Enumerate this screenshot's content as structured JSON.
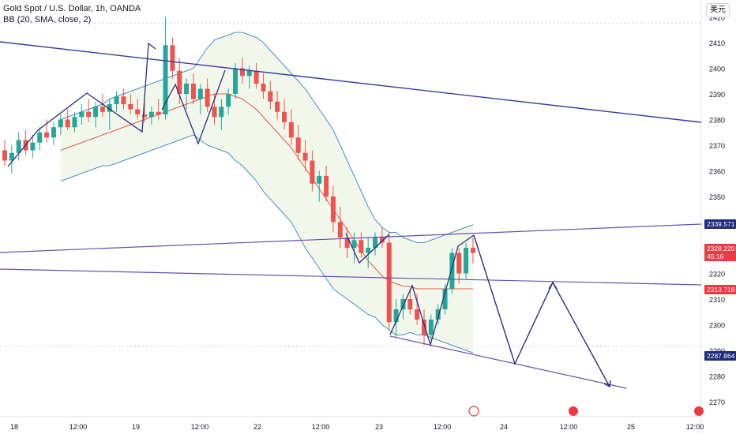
{
  "legend": {
    "symbol_line": "Gold Spot / U.S. Dollar, 1h, OANDA",
    "indicator_line": "BB (20, SMA, close, 2)"
  },
  "currency_button": "美元",
  "colors": {
    "up": "#26a69a",
    "down": "#ef5350",
    "bb_band": "#4a90c2",
    "bb_basis": "#e5574d",
    "bb_fill": "#eef6e6",
    "trendline": "#3a3aa0",
    "pattern": "#2e2e7a",
    "projection": "#2e2e7a",
    "label_red": "#f23645",
    "label_navy": "#1e2a78"
  },
  "chart_data": {
    "type": "candlestick",
    "title": "Gold Spot / U.S. Dollar, 1h, OANDA",
    "indicator": "BB (20, SMA, close, 2)",
    "ylim": [
      2268,
      2425
    ],
    "y_ticks": [
      2270,
      2280,
      2290,
      2300,
      2310,
      2320,
      2330,
      2340,
      2350,
      2360,
      2370,
      2380,
      2390,
      2400,
      2410,
      2420
    ],
    "x_ticks": [
      "18",
      "12:00",
      "19",
      "12:00",
      "22",
      "12:00",
      "23",
      "12:00",
      "24",
      "12:00",
      "25",
      "12:00"
    ],
    "price_labels": [
      {
        "value": "2339.571",
        "style": "navy"
      },
      {
        "value": "2328.220",
        "sub": "45:16",
        "style": "red"
      },
      {
        "value": "2313.718",
        "style": "red"
      },
      {
        "value": "2287.864",
        "style": "navy"
      }
    ],
    "candles": [
      [
        2368,
        2372,
        2362,
        2364
      ],
      [
        2364,
        2370,
        2359,
        2367
      ],
      [
        2367,
        2375,
        2364,
        2372
      ],
      [
        2372,
        2376,
        2366,
        2368
      ],
      [
        2368,
        2374,
        2365,
        2371
      ],
      [
        2371,
        2377,
        2368,
        2375
      ],
      [
        2375,
        2380,
        2371,
        2373
      ],
      [
        2373,
        2379,
        2370,
        2377
      ],
      [
        2377,
        2382,
        2374,
        2380
      ],
      [
        2380,
        2384,
        2376,
        2377
      ],
      [
        2377,
        2383,
        2375,
        2381
      ],
      [
        2381,
        2386,
        2378,
        2383
      ],
      [
        2383,
        2388,
        2379,
        2381
      ],
      [
        2381,
        2387,
        2377,
        2385
      ],
      [
        2385,
        2390,
        2381,
        2383
      ],
      [
        2383,
        2388,
        2376,
        2386
      ],
      [
        2386,
        2391,
        2383,
        2389
      ],
      [
        2389,
        2392,
        2384,
        2386
      ],
      [
        2386,
        2390,
        2382,
        2384
      ],
      [
        2384,
        2388,
        2380,
        2382
      ],
      [
        2382,
        2386,
        2379,
        2381
      ],
      [
        2381,
        2385,
        2378,
        2383
      ],
      [
        2383,
        2388,
        2380,
        2382
      ],
      [
        2382,
        2420,
        2380,
        2409
      ],
      [
        2409,
        2412,
        2396,
        2399
      ],
      [
        2399,
        2404,
        2386,
        2390
      ],
      [
        2390,
        2396,
        2384,
        2394
      ],
      [
        2394,
        2398,
        2386,
        2388
      ],
      [
        2388,
        2394,
        2382,
        2392
      ],
      [
        2392,
        2396,
        2383,
        2385
      ],
      [
        2385,
        2390,
        2378,
        2381
      ],
      [
        2381,
        2388,
        2376,
        2385
      ],
      [
        2385,
        2392,
        2382,
        2390
      ],
      [
        2390,
        2402,
        2388,
        2400
      ],
      [
        2400,
        2404,
        2394,
        2397
      ],
      [
        2397,
        2401,
        2392,
        2399
      ],
      [
        2399,
        2402,
        2392,
        2394
      ],
      [
        2394,
        2398,
        2388,
        2391
      ],
      [
        2391,
        2395,
        2384,
        2387
      ],
      [
        2387,
        2391,
        2380,
        2383
      ],
      [
        2383,
        2388,
        2376,
        2379
      ],
      [
        2379,
        2384,
        2370,
        2373
      ],
      [
        2373,
        2378,
        2364,
        2367
      ],
      [
        2367,
        2372,
        2360,
        2364
      ],
      [
        2364,
        2368,
        2352,
        2355
      ],
      [
        2355,
        2360,
        2348,
        2358
      ],
      [
        2358,
        2362,
        2348,
        2350
      ],
      [
        2350,
        2354,
        2336,
        2340
      ],
      [
        2340,
        2346,
        2330,
        2334
      ],
      [
        2334,
        2338,
        2326,
        2330
      ],
      [
        2330,
        2336,
        2324,
        2333
      ],
      [
        2333,
        2336,
        2326,
        2328
      ],
      [
        2328,
        2334,
        2322,
        2330
      ],
      [
        2330,
        2336,
        2327,
        2334
      ],
      [
        2334,
        2338,
        2330,
        2332
      ],
      [
        2332,
        2336,
        2298,
        2301
      ],
      [
        2301,
        2310,
        2295,
        2306
      ],
      [
        2306,
        2312,
        2302,
        2310
      ],
      [
        2310,
        2314,
        2304,
        2306
      ],
      [
        2306,
        2312,
        2300,
        2302
      ],
      [
        2302,
        2306,
        2292,
        2296
      ],
      [
        2296,
        2304,
        2294,
        2302
      ],
      [
        2302,
        2308,
        2300,
        2306
      ],
      [
        2306,
        2316,
        2304,
        2314
      ],
      [
        2314,
        2330,
        2312,
        2328
      ],
      [
        2328,
        2330,
        2316,
        2320
      ],
      [
        2320,
        2332,
        2318,
        2330
      ],
      [
        2330,
        2334,
        2324,
        2328
      ]
    ],
    "bb_upper": [
      2380,
      2381,
      2382,
      2383,
      2384,
      2385,
      2386,
      2388,
      2389,
      2390,
      2391,
      2392,
      2393,
      2394,
      2395,
      2396,
      2397,
      2398,
      2399,
      2400,
      2404,
      2408,
      2411,
      2412,
      2413,
      2414,
      2414,
      2413,
      2412,
      2410,
      2407,
      2404,
      2401,
      2398,
      2395,
      2392,
      2388,
      2384,
      2380,
      2376,
      2370,
      2364,
      2358,
      2352,
      2346,
      2341,
      2338,
      2336,
      2336,
      2334,
      2333,
      2332,
      2332,
      2333,
      2334,
      2335,
      2336,
      2337,
      2338,
      2339
    ],
    "bb_basis": [
      2368,
      2369,
      2370,
      2371,
      2372,
      2373,
      2374,
      2375,
      2376,
      2377,
      2378,
      2379,
      2380,
      2381,
      2382,
      2383,
      2384,
      2385,
      2386,
      2387,
      2388,
      2389,
      2390,
      2390,
      2390,
      2389,
      2388,
      2386,
      2384,
      2381,
      2378,
      2375,
      2372,
      2369,
      2365,
      2361,
      2357,
      2353,
      2349,
      2345,
      2341,
      2337,
      2333,
      2329,
      2325,
      2322,
      2319,
      2317,
      2316,
      2315,
      2315,
      2314,
      2314,
      2314,
      2314,
      2314,
      2314,
      2314,
      2314,
      2314
    ],
    "bb_lower": [
      2356,
      2357,
      2358,
      2359,
      2360,
      2361,
      2362,
      2362,
      2363,
      2364,
      2365,
      2366,
      2367,
      2368,
      2369,
      2370,
      2371,
      2372,
      2373,
      2374,
      2372,
      2370,
      2369,
      2368,
      2367,
      2364,
      2362,
      2359,
      2356,
      2352,
      2349,
      2346,
      2343,
      2340,
      2335,
      2330,
      2326,
      2322,
      2318,
      2314,
      2312,
      2310,
      2308,
      2306,
      2304,
      2303,
      2300,
      2298,
      2296,
      2296,
      2297,
      2296,
      2296,
      2295,
      2294,
      2293,
      2292,
      2291,
      2290,
      2289
    ]
  }
}
